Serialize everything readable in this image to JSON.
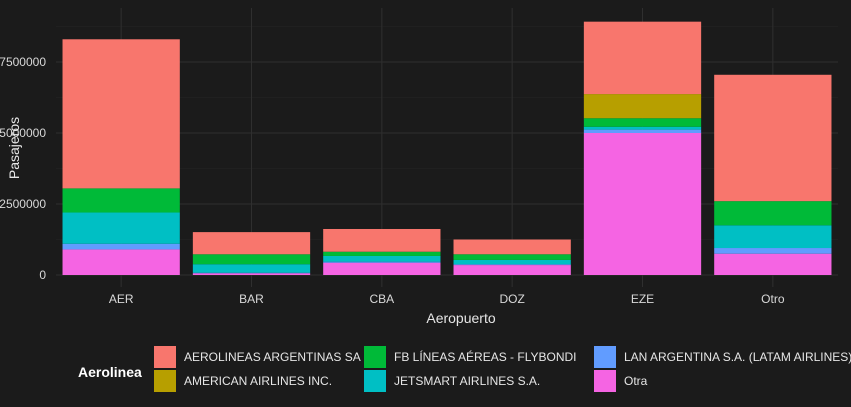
{
  "chart_data": {
    "type": "bar",
    "stacked": true,
    "xlabel": "Aeropuerto",
    "ylabel": "Pasajeros",
    "ylim": [
      0,
      9000000
    ],
    "yticks": [
      0,
      2500000,
      5000000,
      7500000
    ],
    "ytick_labels": [
      "0",
      "2500000",
      "5000000",
      "7500000"
    ],
    "grid": true,
    "legend_position": "bottom",
    "legend_title": "Aerolinea",
    "categories": [
      "AER",
      "BAR",
      "CBA",
      "DOZ",
      "EZE",
      "Otro"
    ],
    "series": [
      {
        "name": "Otra",
        "color": "#F564E3",
        "values": [
          900000,
          60000,
          430000,
          350000,
          5000000,
          750000
        ]
      },
      {
        "name": "LAN ARGENTINA S.A. (LATAM AIRLINES)",
        "color": "#619CFF",
        "values": [
          200000,
          20000,
          40000,
          30000,
          120000,
          200000
        ]
      },
      {
        "name": "JETSMART AIRLINES S.A.",
        "color": "#00BFC4",
        "values": [
          1100000,
          300000,
          200000,
          150000,
          100000,
          800000
        ]
      },
      {
        "name": "FB LÍNEAS AÉREAS - FLYBONDI",
        "color": "#00BA38",
        "values": [
          850000,
          350000,
          150000,
          200000,
          300000,
          850000
        ]
      },
      {
        "name": "AMERICAN AIRLINES INC.",
        "color": "#B79F00",
        "values": [
          0,
          0,
          0,
          0,
          850000,
          0
        ]
      },
      {
        "name": "AEROLINEAS ARGENTINAS SA",
        "color": "#F8766D",
        "values": [
          5250000,
          780000,
          800000,
          520000,
          2550000,
          4450000
        ]
      }
    ],
    "legend_order": [
      "AEROLINEAS ARGENTINAS SA",
      "FB LÍNEAS AÉREAS - FLYBONDI",
      "LAN ARGENTINA S.A. (LATAM AIRLINES)",
      "AMERICAN AIRLINES INC.",
      "JETSMART AIRLINES S.A.",
      "Otra"
    ]
  }
}
